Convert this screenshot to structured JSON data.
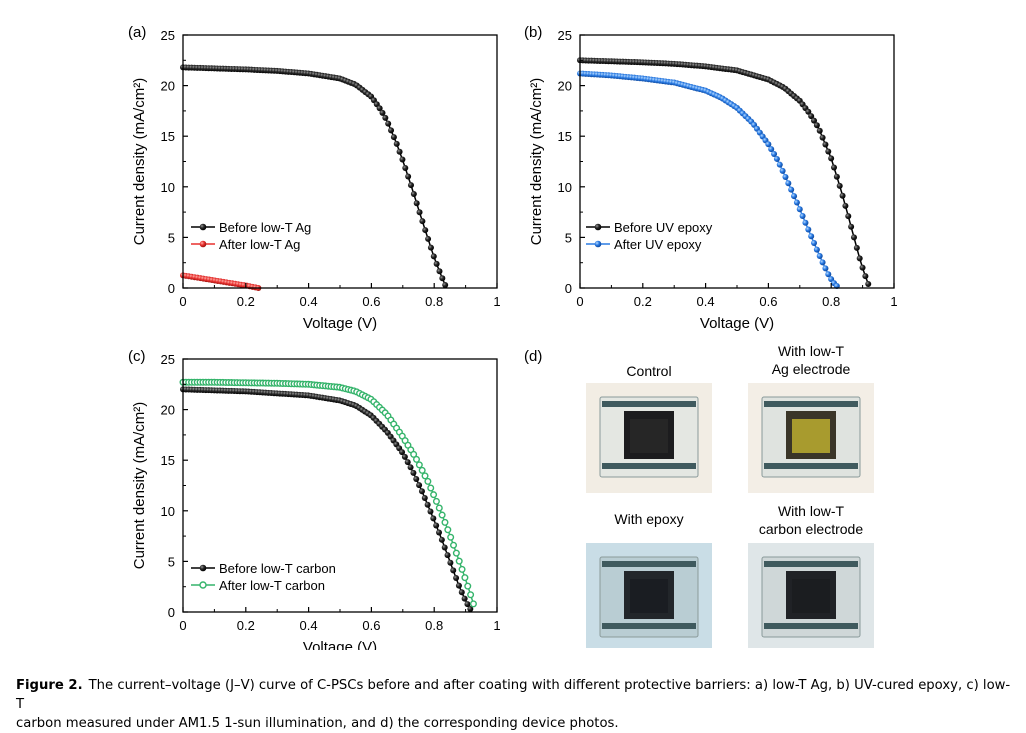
{
  "chart_data": [
    {
      "type": "line",
      "panel_label": "(a)",
      "xlabel": "Voltage (V)",
      "ylabel": "Current density (mA/cm²)",
      "xlim": [
        0,
        1
      ],
      "ylim": [
        0,
        25
      ],
      "xticks": [
        "0",
        "0.2",
        "0.4",
        "0.6",
        "0.8",
        "1"
      ],
      "yticks": [
        "0",
        "5",
        "10",
        "15",
        "20",
        "25"
      ],
      "legend_position": "lower-left",
      "series": [
        {
          "name": "Before low-T Ag",
          "color": "#000000",
          "marker": "sphere",
          "x": [
            0,
            0.1,
            0.2,
            0.3,
            0.4,
            0.5,
            0.55,
            0.6,
            0.63,
            0.65,
            0.68,
            0.7,
            0.73,
            0.75,
            0.78,
            0.8,
            0.82,
            0.835
          ],
          "y": [
            21.8,
            21.7,
            21.6,
            21.45,
            21.2,
            20.7,
            20.1,
            18.9,
            17.6,
            16.5,
            14.3,
            12.6,
            9.8,
            7.8,
            4.9,
            3.0,
            1.4,
            0.3
          ]
        },
        {
          "name": "After low-T Ag",
          "color": "#e8302f",
          "marker": "sphere",
          "x": [
            0,
            0.05,
            0.1,
            0.15,
            0.2,
            0.24
          ],
          "y": [
            1.25,
            1.0,
            0.75,
            0.5,
            0.25,
            0
          ]
        }
      ]
    },
    {
      "type": "line",
      "panel_label": "(b)",
      "xlabel": "Voltage (V)",
      "ylabel": "Current density (mA/cm²)",
      "xlim": [
        0,
        1
      ],
      "ylim": [
        0,
        25
      ],
      "xticks": [
        "0",
        "0.2",
        "0.4",
        "0.6",
        "0.8",
        "1"
      ],
      "yticks": [
        "0",
        "5",
        "10",
        "15",
        "20",
        "25"
      ],
      "legend_position": "lower-left",
      "series": [
        {
          "name": "Before UV epoxy",
          "color": "#000000",
          "marker": "sphere",
          "x": [
            0,
            0.1,
            0.2,
            0.3,
            0.4,
            0.5,
            0.6,
            0.65,
            0.7,
            0.73,
            0.76,
            0.8,
            0.83,
            0.85,
            0.87,
            0.89,
            0.905,
            0.918
          ],
          "y": [
            22.5,
            22.4,
            22.3,
            22.15,
            21.9,
            21.5,
            20.6,
            19.8,
            18.5,
            17.3,
            15.8,
            12.8,
            9.8,
            7.6,
            5.3,
            3.0,
            1.5,
            0.4
          ]
        },
        {
          "name": "After UV epoxy",
          "color": "#2a7be4",
          "marker": "sphere",
          "x": [
            0,
            0.1,
            0.2,
            0.3,
            0.4,
            0.45,
            0.5,
            0.55,
            0.6,
            0.63,
            0.66,
            0.69,
            0.72,
            0.75,
            0.77,
            0.79,
            0.805,
            0.818
          ],
          "y": [
            21.2,
            21.0,
            20.7,
            20.3,
            19.5,
            18.8,
            17.8,
            16.3,
            14.2,
            12.6,
            10.6,
            8.5,
            6.3,
            4.1,
            2.7,
            1.4,
            0.6,
            0.2
          ]
        }
      ]
    },
    {
      "type": "line",
      "panel_label": "(c)",
      "xlabel": "Voltage (V)",
      "ylabel": "Current density (mA/cm²)",
      "xlim": [
        0,
        1
      ],
      "ylim": [
        0,
        25
      ],
      "xticks": [
        "0",
        "0.2",
        "0.4",
        "0.6",
        "0.8",
        "1"
      ],
      "yticks": [
        "0",
        "5",
        "10",
        "15",
        "20",
        "25"
      ],
      "legend_position": "lower-left",
      "series": [
        {
          "name": "Before low-T carbon",
          "color": "#000000",
          "marker": "sphere",
          "x": [
            0,
            0.1,
            0.2,
            0.3,
            0.4,
            0.5,
            0.55,
            0.6,
            0.65,
            0.7,
            0.73,
            0.76,
            0.79,
            0.82,
            0.85,
            0.88,
            0.9,
            0.915
          ],
          "y": [
            22.0,
            21.9,
            21.8,
            21.6,
            21.4,
            20.9,
            20.4,
            19.4,
            17.8,
            15.7,
            14.0,
            12.0,
            9.8,
            7.5,
            5.0,
            2.5,
            1.1,
            0.3
          ]
        },
        {
          "name": "After low-T carbon",
          "color": "#35b46b",
          "marker": "ring",
          "x": [
            0,
            0.1,
            0.2,
            0.3,
            0.4,
            0.5,
            0.55,
            0.6,
            0.65,
            0.7,
            0.74,
            0.78,
            0.82,
            0.85,
            0.88,
            0.9,
            0.915,
            0.925
          ],
          "y": [
            22.7,
            22.7,
            22.65,
            22.6,
            22.5,
            22.2,
            21.8,
            21.0,
            19.5,
            17.3,
            15.3,
            12.9,
            10.0,
            7.6,
            5.0,
            3.2,
            1.8,
            0.8
          ]
        }
      ]
    }
  ],
  "photos": {
    "panel_label": "(d)",
    "items": [
      {
        "title_lines": [
          "Control"
        ],
        "background": "#f2ede4",
        "glass": "#e4e7e2",
        "film": "#1c1c1e",
        "inner": "#262626"
      },
      {
        "title_lines": [
          "With low-T",
          "Ag electrode"
        ],
        "background": "#f3eee6",
        "glass": "#dfe3df",
        "film": "#3a3528",
        "inner": "#a89b2e"
      },
      {
        "title_lines": [
          "With epoxy"
        ],
        "background": "#c9dde6",
        "glass": "#b9cdd3",
        "film": "#22262a",
        "inner": "#1a1d22"
      },
      {
        "title_lines": [
          "With low-T",
          "carbon electrode"
        ],
        "background": "#dfe6e8",
        "glass": "#cfd7d8",
        "film": "#202226",
        "inner": "#1b1d20"
      }
    ]
  },
  "caption": {
    "label": "Figure 2.",
    "text_line1": "The current–voltage (J–V) curve of C-PSCs before and after coating with different protective barriers: a) low-T Ag, b) UV-cured epoxy, c) low-T",
    "text_line2": "carbon measured under AM1.5 1-sun illumination, and d) the corresponding device photos."
  }
}
